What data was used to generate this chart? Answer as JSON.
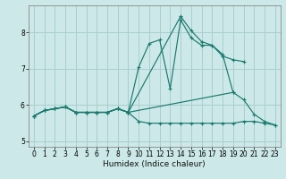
{
  "xlabel": "Humidex (Indice chaleur)",
  "bg_color": "#cce8e8",
  "grid_color": "#aacece",
  "line_color": "#1a7a6e",
  "xlim": [
    -0.5,
    23.5
  ],
  "ylim": [
    4.85,
    8.75
  ],
  "xticks": [
    0,
    1,
    2,
    3,
    4,
    5,
    6,
    7,
    8,
    9,
    10,
    11,
    12,
    13,
    14,
    15,
    16,
    17,
    18,
    19,
    20,
    21,
    22,
    23
  ],
  "yticks": [
    5,
    6,
    7,
    8
  ],
  "series": [
    {
      "x": [
        0,
        1,
        2,
        3,
        4,
        5,
        6,
        7,
        8,
        9,
        10,
        11,
        12,
        13,
        14,
        15,
        16,
        17,
        18,
        19
      ],
      "y": [
        5.7,
        5.85,
        5.9,
        5.95,
        5.8,
        5.8,
        5.8,
        5.8,
        5.9,
        5.8,
        7.05,
        7.7,
        7.8,
        6.45,
        8.35,
        7.85,
        7.65,
        7.65,
        7.4,
        6.35
      ]
    },
    {
      "x": [
        0,
        1,
        2,
        3,
        4,
        5,
        6,
        7,
        8,
        9,
        14,
        15,
        16,
        17,
        18,
        19,
        20
      ],
      "y": [
        5.7,
        5.85,
        5.9,
        5.95,
        5.8,
        5.8,
        5.8,
        5.8,
        5.9,
        5.8,
        8.45,
        8.05,
        7.75,
        7.65,
        7.35,
        7.25,
        7.2
      ]
    },
    {
      "x": [
        0,
        1,
        2,
        3,
        4,
        5,
        6,
        7,
        8,
        9,
        19,
        20,
        21,
        22,
        23
      ],
      "y": [
        5.7,
        5.85,
        5.9,
        5.95,
        5.8,
        5.8,
        5.8,
        5.8,
        5.9,
        5.8,
        6.35,
        6.15,
        5.75,
        5.55,
        5.45
      ]
    },
    {
      "x": [
        0,
        1,
        2,
        3,
        4,
        5,
        6,
        7,
        8,
        9,
        10,
        11,
        12,
        13,
        14,
        15,
        16,
        17,
        18,
        19,
        20,
        21,
        22,
        23
      ],
      "y": [
        5.7,
        5.85,
        5.9,
        5.95,
        5.8,
        5.8,
        5.8,
        5.8,
        5.9,
        5.8,
        5.55,
        5.5,
        5.5,
        5.5,
        5.5,
        5.5,
        5.5,
        5.5,
        5.5,
        5.5,
        5.55,
        5.55,
        5.5,
        5.45
      ]
    }
  ]
}
